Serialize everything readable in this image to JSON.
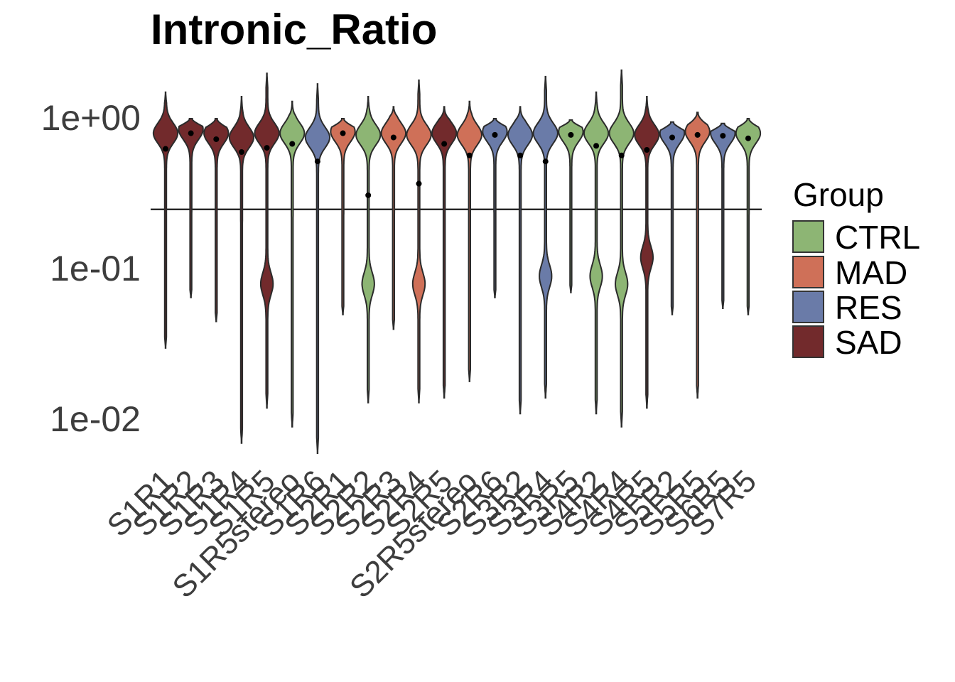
{
  "chart_data": {
    "type": "violin",
    "title": "Intronic_Ratio",
    "xlabel": "",
    "ylabel": "",
    "y_scale": "log10",
    "y_ticks": [
      "1e+00",
      "1e-01",
      "1e-02"
    ],
    "y_tick_values": [
      1,
      0.1,
      0.01
    ],
    "hline": 0.25,
    "grid": false,
    "legend": {
      "title": "Group",
      "position": "right",
      "entries": [
        {
          "name": "CTRL",
          "color": "#8db574"
        },
        {
          "name": "MAD",
          "color": "#cf7058"
        },
        {
          "name": "RES",
          "color": "#6a7ba8"
        },
        {
          "name": "SAD",
          "color": "#722a2c"
        }
      ]
    },
    "categories": [
      {
        "label": "S1R1",
        "group": "SAD",
        "mean": 0.63,
        "min": 0.03,
        "max": 1.5,
        "mode_high": 0.8,
        "lower_bulge": null
      },
      {
        "label": "S1R2",
        "group": "SAD",
        "mean": 0.8,
        "min": 0.065,
        "max": 1.0,
        "mode_high": 0.85,
        "lower_bulge": null
      },
      {
        "label": "S1R3",
        "group": "SAD",
        "mean": 0.73,
        "min": 0.045,
        "max": 1.0,
        "mode_high": 0.8,
        "lower_bulge": null
      },
      {
        "label": "S1R4",
        "group": "SAD",
        "mean": 0.6,
        "min": 0.007,
        "max": 1.4,
        "mode_high": 0.75,
        "lower_bulge": null
      },
      {
        "label": "S1R5",
        "group": "SAD",
        "mean": 0.64,
        "min": 0.012,
        "max": 2.0,
        "mode_high": 0.8,
        "lower_bulge": 0.08
      },
      {
        "label": "S1R5stereo",
        "group": "CTRL",
        "mean": 0.68,
        "min": 0.009,
        "max": 1.3,
        "mode_high": 0.8,
        "lower_bulge": null
      },
      {
        "label": "S1R6",
        "group": "RES",
        "mean": 0.52,
        "min": 0.006,
        "max": 1.7,
        "mode_high": 0.75,
        "lower_bulge": null
      },
      {
        "label": "S2R1",
        "group": "MAD",
        "mean": 0.8,
        "min": 0.05,
        "max": 1.0,
        "mode_high": 0.82,
        "lower_bulge": null
      },
      {
        "label": "S2R2",
        "group": "CTRL",
        "mean": 0.31,
        "min": 0.013,
        "max": 1.4,
        "mode_high": 0.78,
        "lower_bulge": 0.08
      },
      {
        "label": "S2R3",
        "group": "MAD",
        "mean": 0.75,
        "min": 0.04,
        "max": 1.2,
        "mode_high": 0.8,
        "lower_bulge": null
      },
      {
        "label": "S2R4",
        "group": "MAD",
        "mean": 0.37,
        "min": 0.013,
        "max": 1.8,
        "mode_high": 0.78,
        "lower_bulge": 0.08
      },
      {
        "label": "S2R5",
        "group": "SAD",
        "mean": 0.68,
        "min": 0.014,
        "max": 1.2,
        "mode_high": 0.8,
        "lower_bulge": null
      },
      {
        "label": "S2R5stereo",
        "group": "MAD",
        "mean": 0.57,
        "min": 0.018,
        "max": 1.3,
        "mode_high": 0.78,
        "lower_bulge": null
      },
      {
        "label": "S2R6",
        "group": "RES",
        "mean": 0.78,
        "min": 0.065,
        "max": 1.0,
        "mode_high": 0.82,
        "lower_bulge": null
      },
      {
        "label": "S3R2",
        "group": "RES",
        "mean": 0.57,
        "min": 0.011,
        "max": 1.2,
        "mode_high": 0.78,
        "lower_bulge": null
      },
      {
        "label": "S3R4",
        "group": "RES",
        "mean": 0.52,
        "min": 0.014,
        "max": 1.9,
        "mode_high": 0.8,
        "lower_bulge": 0.09
      },
      {
        "label": "S3R5",
        "group": "CTRL",
        "mean": 0.78,
        "min": 0.07,
        "max": 0.98,
        "mode_high": 0.82,
        "lower_bulge": null
      },
      {
        "label": "S4R2",
        "group": "CTRL",
        "mean": 0.66,
        "min": 0.011,
        "max": 1.5,
        "mode_high": 0.8,
        "lower_bulge": 0.09
      },
      {
        "label": "S4R4",
        "group": "CTRL",
        "mean": 0.57,
        "min": 0.009,
        "max": 2.1,
        "mode_high": 0.8,
        "lower_bulge": 0.08
      },
      {
        "label": "S4R5",
        "group": "SAD",
        "mean": 0.62,
        "min": 0.012,
        "max": 1.4,
        "mode_high": 0.78,
        "lower_bulge": 0.12
      },
      {
        "label": "S5R2",
        "group": "RES",
        "mean": 0.75,
        "min": 0.05,
        "max": 0.95,
        "mode_high": 0.8,
        "lower_bulge": null
      },
      {
        "label": "S5R5",
        "group": "MAD",
        "mean": 0.78,
        "min": 0.014,
        "max": 1.1,
        "mode_high": 0.82,
        "lower_bulge": null
      },
      {
        "label": "S6R5",
        "group": "RES",
        "mean": 0.77,
        "min": 0.055,
        "max": 0.93,
        "mode_high": 0.8,
        "lower_bulge": null
      },
      {
        "label": "S7R5",
        "group": "CTRL",
        "mean": 0.74,
        "min": 0.05,
        "max": 1.0,
        "mode_high": 0.8,
        "lower_bulge": null
      }
    ]
  }
}
